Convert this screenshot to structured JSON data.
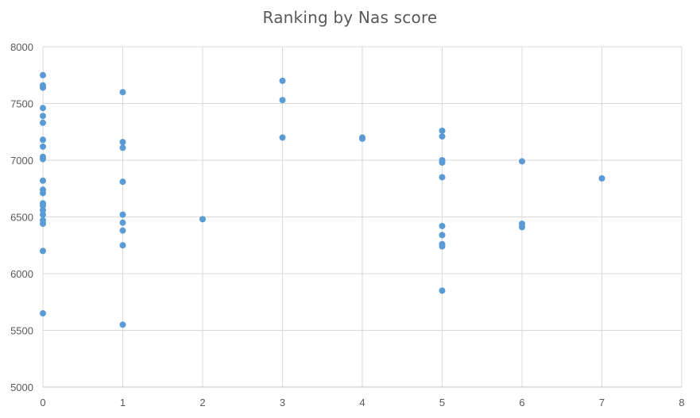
{
  "chart_data": {
    "type": "scatter",
    "title": "Ranking by Nas score",
    "xlabel": "",
    "ylabel": "",
    "xlim": [
      0,
      8
    ],
    "ylim": [
      5000,
      8000
    ],
    "x_ticks": [
      "0",
      "1",
      "2",
      "3",
      "4",
      "5",
      "6",
      "7",
      "8"
    ],
    "y_ticks": [
      "5000",
      "5500",
      "6000",
      "6500",
      "7000",
      "7500",
      "8000"
    ],
    "grid": true,
    "legend": "none",
    "colors": {
      "marker": "#5B9BD5",
      "grid": "#D9D9D9",
      "text": "#595959"
    },
    "series": [
      {
        "points": [
          [
            0,
            7750
          ],
          [
            0,
            7660
          ],
          [
            0,
            7640
          ],
          [
            0,
            7460
          ],
          [
            0,
            7390
          ],
          [
            0,
            7330
          ],
          [
            0,
            7180
          ],
          [
            0,
            7120
          ],
          [
            0,
            7030
          ],
          [
            0,
            7010
          ],
          [
            0,
            6820
          ],
          [
            0,
            6740
          ],
          [
            0,
            6710
          ],
          [
            0,
            6620
          ],
          [
            0,
            6600
          ],
          [
            0,
            6560
          ],
          [
            0,
            6520
          ],
          [
            0,
            6470
          ],
          [
            0,
            6440
          ],
          [
            0,
            6200
          ],
          [
            0,
            5650
          ],
          [
            1,
            7600
          ],
          [
            1,
            7160
          ],
          [
            1,
            7110
          ],
          [
            1,
            6810
          ],
          [
            1,
            6520
          ],
          [
            1,
            6450
          ],
          [
            1,
            6380
          ],
          [
            1,
            6250
          ],
          [
            1,
            5550
          ],
          [
            2,
            6480
          ],
          [
            3,
            7700
          ],
          [
            3,
            7530
          ],
          [
            3,
            7200
          ],
          [
            4,
            7200
          ],
          [
            4,
            7190
          ],
          [
            5,
            7260
          ],
          [
            5,
            7210
          ],
          [
            5,
            7000
          ],
          [
            5,
            6980
          ],
          [
            5,
            6850
          ],
          [
            5,
            6420
          ],
          [
            5,
            6340
          ],
          [
            5,
            6260
          ],
          [
            5,
            6240
          ],
          [
            5,
            5850
          ],
          [
            6,
            6990
          ],
          [
            6,
            6440
          ],
          [
            6,
            6410
          ],
          [
            7,
            6840
          ]
        ]
      }
    ]
  }
}
